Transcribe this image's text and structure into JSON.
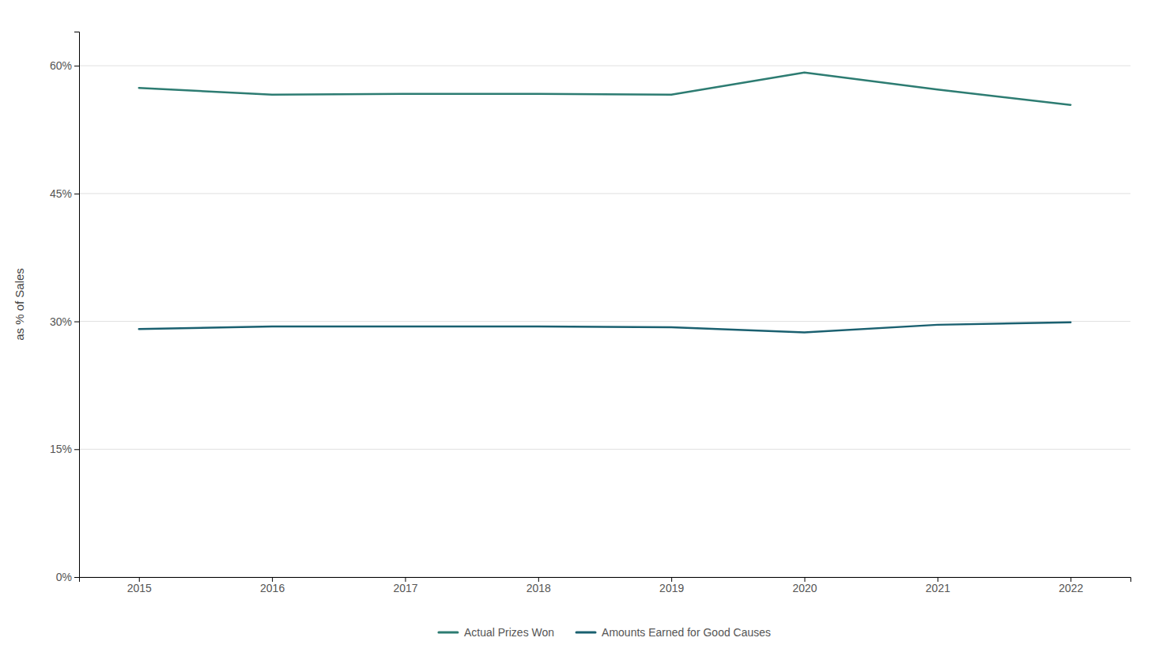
{
  "chart_data": {
    "type": "line",
    "ylabel": "as % of Sales",
    "x": [
      2015,
      2016,
      2017,
      2018,
      2019,
      2020,
      2021,
      2022
    ],
    "series": [
      {
        "name": "Actual Prizes Won",
        "color": "#2d7c72",
        "values": [
          0.574,
          0.566,
          0.567,
          0.567,
          0.566,
          0.592,
          0.572,
          0.554
        ]
      },
      {
        "name": "Amounts Earned for Good Causes",
        "color": "#1a6070",
        "values": [
          0.291,
          0.294,
          0.294,
          0.294,
          0.293,
          0.287,
          0.296,
          0.299
        ]
      }
    ],
    "xlim": [
      2014.55,
      2022.45
    ],
    "xticks": [
      2015,
      2016,
      2017,
      2018,
      2019,
      2020,
      2021,
      2022
    ],
    "ylim": [
      0.0,
      0.64
    ],
    "yticks": [
      {
        "value": 0.0,
        "label": "0%"
      },
      {
        "value": 0.15,
        "label": "15%"
      },
      {
        "value": 0.3,
        "label": "30%"
      },
      {
        "value": 0.45,
        "label": "45%"
      },
      {
        "value": 0.6,
        "label": "60%"
      }
    ],
    "grid": true,
    "legend": "bottom"
  }
}
